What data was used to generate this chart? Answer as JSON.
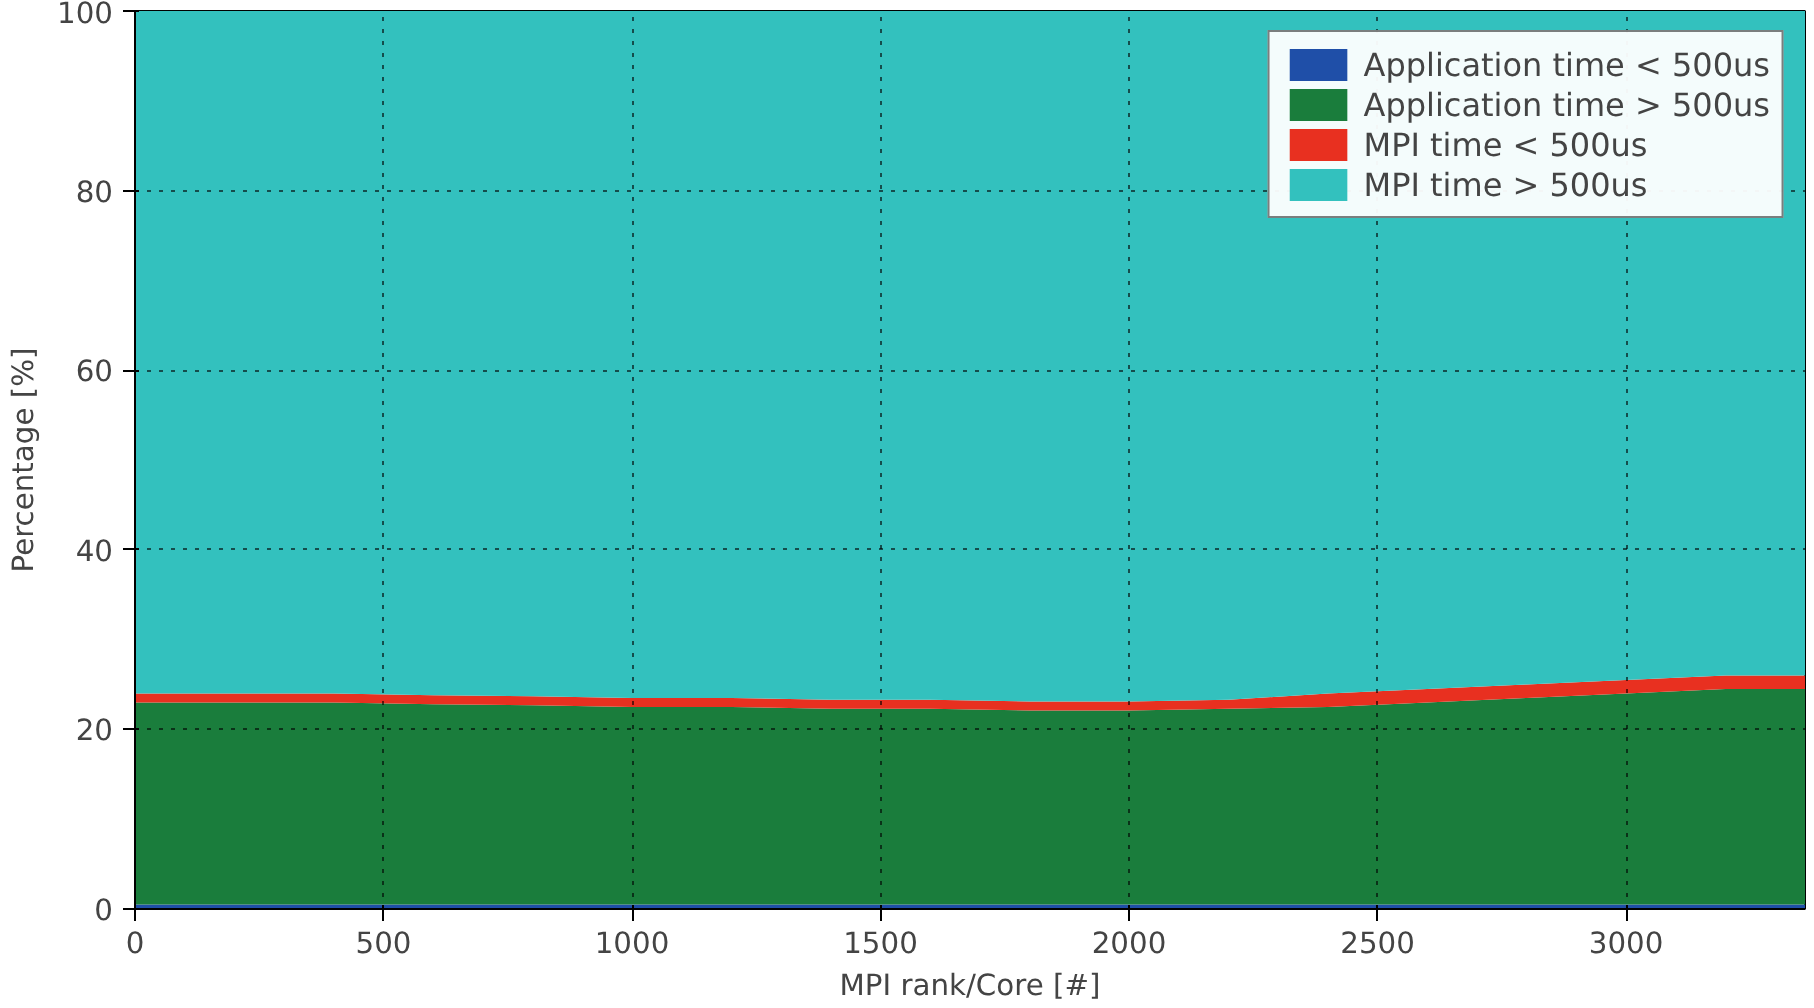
{
  "chart_data": {
    "type": "area",
    "stacked": true,
    "xlabel": "MPI rank/Core [#]",
    "ylabel": "Percentage [%]",
    "x": [
      0,
      200,
      400,
      600,
      800,
      1000,
      1200,
      1400,
      1600,
      1800,
      2000,
      2200,
      2400,
      2600,
      2800,
      3000,
      3200,
      3360
    ],
    "xlim": [
      0,
      3360
    ],
    "xticks": [
      0,
      500,
      1000,
      1500,
      2000,
      2500,
      3000
    ],
    "ylim": [
      0,
      100
    ],
    "yticks": [
      0,
      20,
      40,
      60,
      80,
      100
    ],
    "grid": true,
    "legend": "top right",
    "series": [
      {
        "name": "Application time < 500us",
        "color": "#1f4fa8",
        "values": [
          0.5,
          0.5,
          0.5,
          0.5,
          0.5,
          0.5,
          0.5,
          0.5,
          0.5,
          0.5,
          0.5,
          0.5,
          0.5,
          0.5,
          0.5,
          0.5,
          0.5,
          0.5
        ]
      },
      {
        "name": "Application time > 500us",
        "color": "#1a7d3c",
        "values": [
          22.5,
          22.5,
          22.5,
          22.3,
          22.2,
          22,
          22,
          21.8,
          21.8,
          21.6,
          21.6,
          21.8,
          22,
          22.5,
          23,
          23.5,
          24,
          24
        ]
      },
      {
        "name": "MPI time < 500us",
        "color": "#e83020",
        "values": [
          1,
          1,
          1,
          1,
          1,
          1,
          1,
          1,
          1,
          1,
          1,
          1,
          1.5,
          1.5,
          1.5,
          1.5,
          1.5,
          1.5
        ]
      },
      {
        "name": "MPI time > 500us",
        "color": "#33c1be",
        "values": [
          76,
          76,
          76,
          76.2,
          76.3,
          76.5,
          76.5,
          76.7,
          76.7,
          76.9,
          76.9,
          76.7,
          76,
          75.5,
          75,
          74.5,
          74,
          74
        ]
      }
    ]
  }
}
